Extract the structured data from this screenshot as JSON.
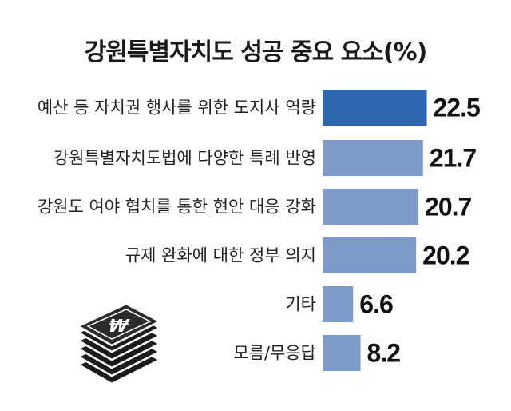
{
  "chart_data": {
    "type": "bar",
    "orientation": "horizontal",
    "title": "강원특별자치도 성공 중요 요소(%)",
    "categories": [
      "예산 등 자치권 행사를 위한 도지사 역량",
      "강원특별자치도법에 다양한 특례 반영",
      "강원도 여야 협치를 통한 현안 대응 강화",
      "규제 완화에 대한 정부 의지",
      "기타",
      "모름/무응답"
    ],
    "values": [
      22.5,
      21.7,
      20.7,
      20.2,
      6.6,
      8.2
    ],
    "value_labels": [
      "22.5",
      "21.7",
      "20.7",
      "20.2",
      "6.6",
      "8.2"
    ],
    "highlight_index": 0,
    "colors": {
      "highlight": "#2e66ad",
      "bar": "#7d9bc9"
    },
    "xlabel": "",
    "ylabel": "",
    "grid": false,
    "legend": "none"
  },
  "decoration": {
    "icon": "money-stack-icon"
  }
}
